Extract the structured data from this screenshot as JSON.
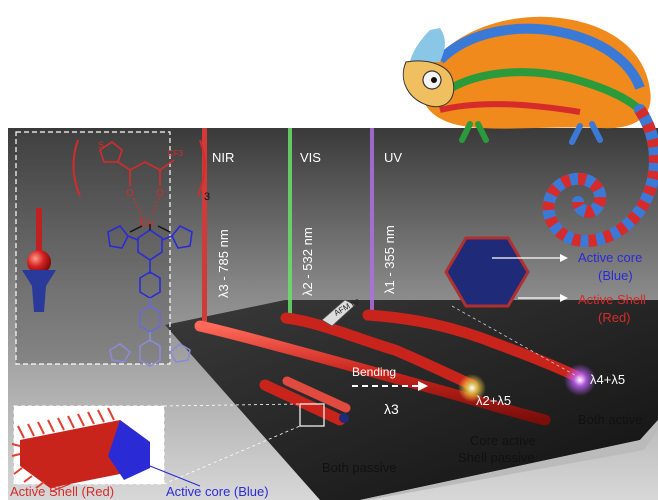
{
  "beams": {
    "nir": {
      "label": "NIR",
      "wavelength": "λ3 - 785 nm",
      "color": "#d23a3a"
    },
    "vis": {
      "label": "VIS",
      "wavelength": "λ2 - 532 nm",
      "color": "#4fd35a"
    },
    "uv": {
      "label": "UV",
      "wavelength": "λ1 - 355 nm",
      "color": "#b070e0"
    }
  },
  "labels": {
    "afm_tip": "AFM tip",
    "bending": "Bending",
    "out_l3": "λ3",
    "out_l2l5": "λ2+λ5",
    "out_l4l5": "λ4+λ5",
    "active_core": "Active core",
    "active_core_color": "(Blue)",
    "active_shell": "Active Shell",
    "active_shell_color": "(Red)",
    "both_passive": "Both passive",
    "core_active": "Core active",
    "shell_passive": "Shell passive",
    "both_active": "Both active",
    "bottom_shell": "Active Shell (Red)",
    "bottom_core": "Active core (Blue)"
  },
  "molecule": {
    "metal": "Eu",
    "subscript": "3",
    "cf3": "CF3",
    "sulfur": "S",
    "oxygen": "O"
  },
  "colors": {
    "red": "#d62b2b",
    "blue": "#2b2bd6",
    "core": "#1f2a78",
    "surface": "#2a2a2a",
    "background": "#555555"
  }
}
